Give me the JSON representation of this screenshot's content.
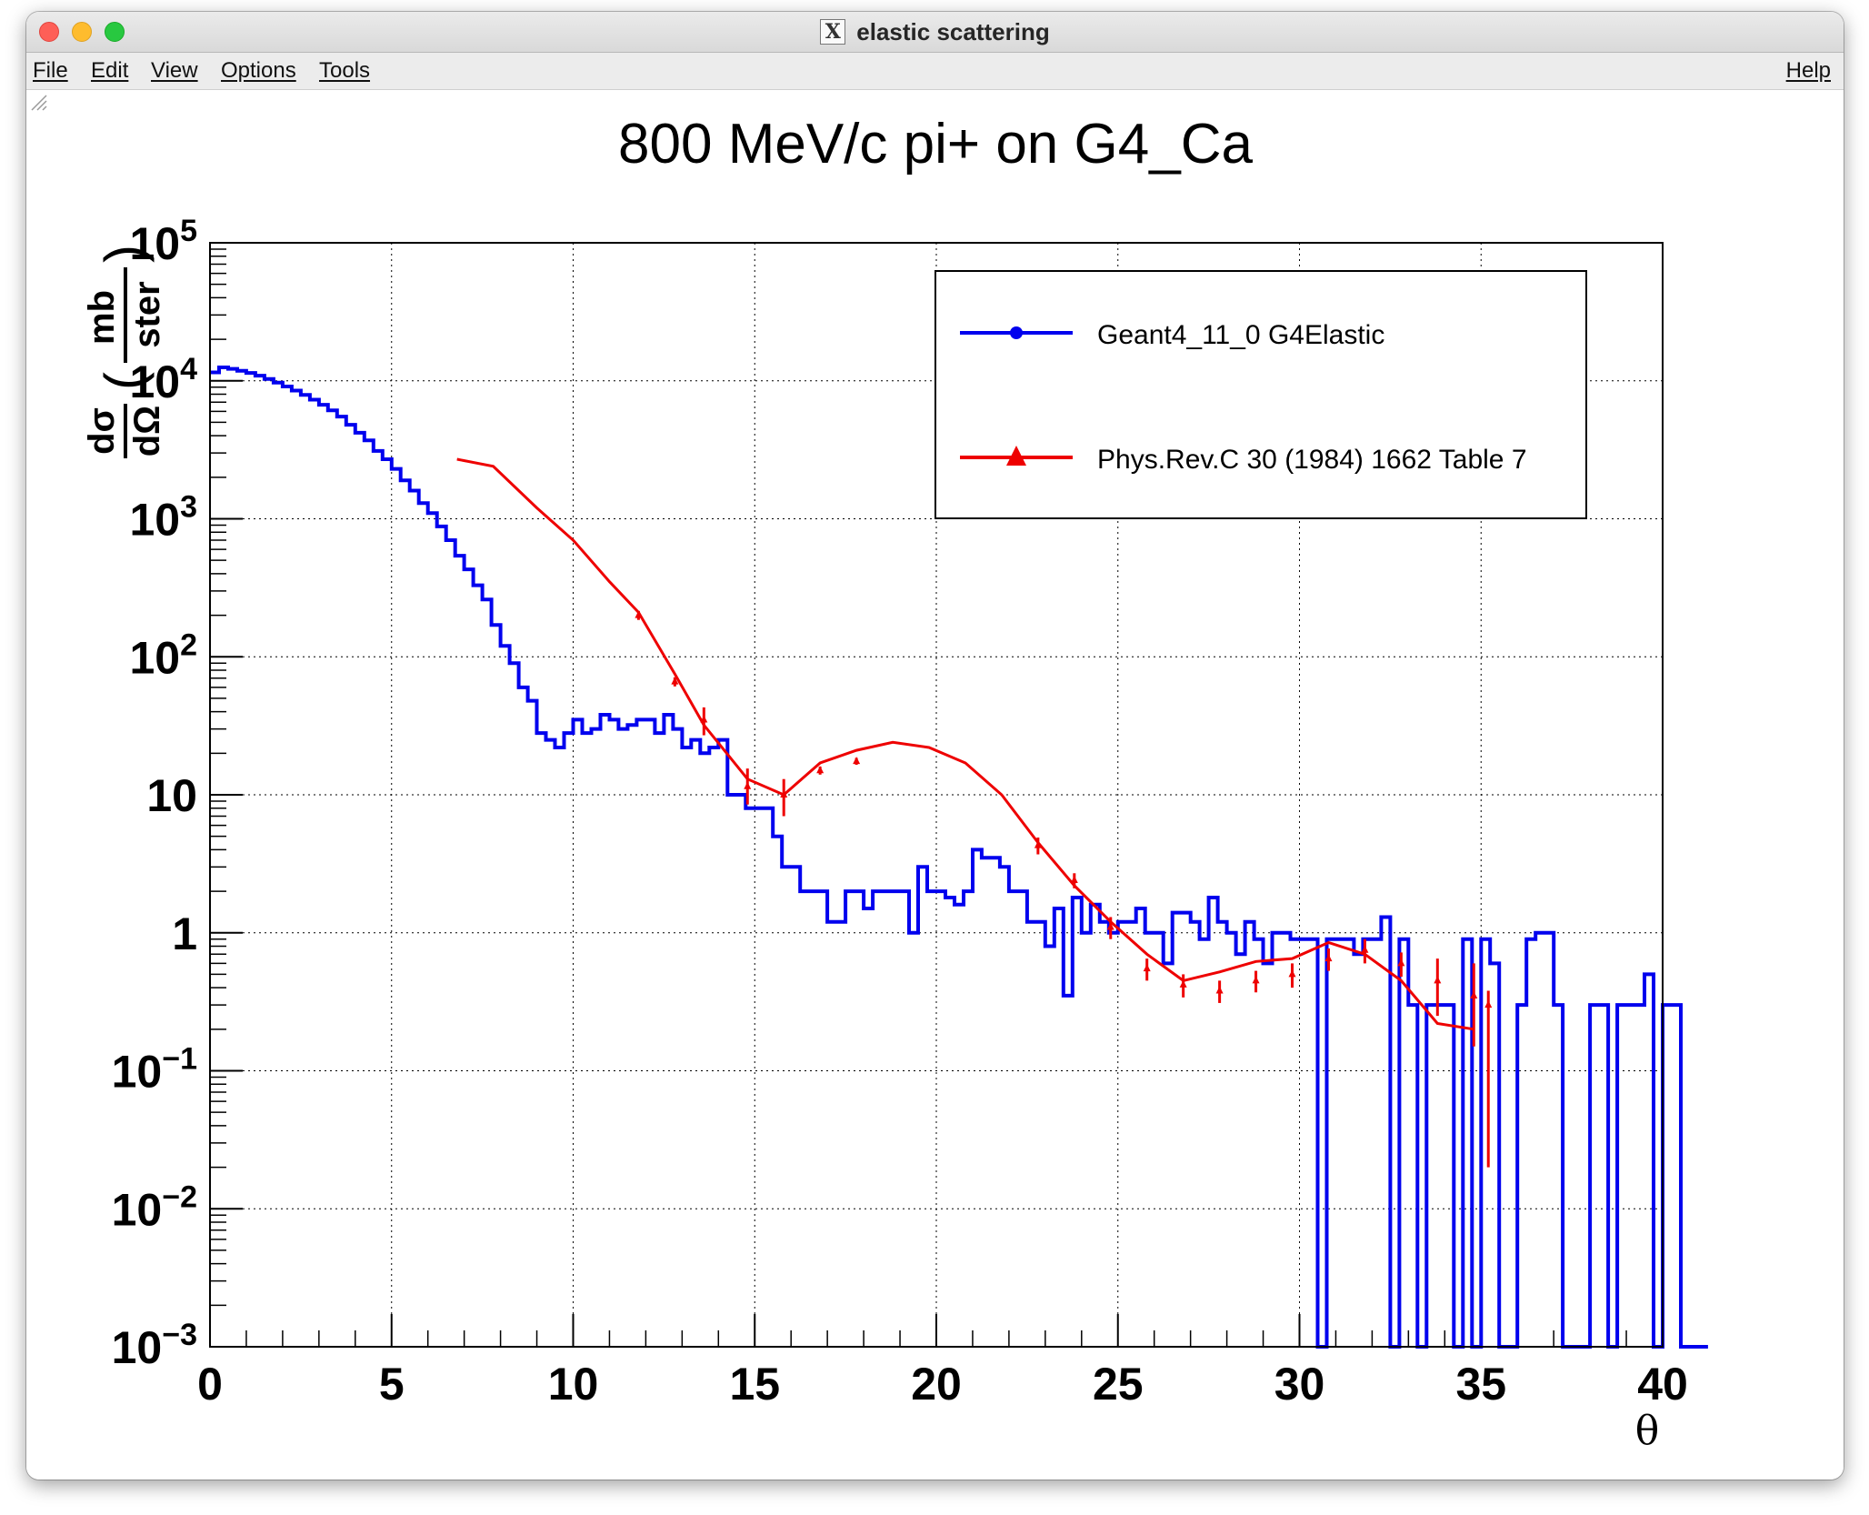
{
  "window": {
    "title": "elastic scattering"
  },
  "menu": {
    "file": "File",
    "edit": "Edit",
    "view": "View",
    "options": "Options",
    "tools": "Tools",
    "help": "Help"
  },
  "chart_data": {
    "type": "line",
    "title": "800 MeV/c pi+ on G4_Ca",
    "xlabel": "θ",
    "ylabel_num_left": "dσ",
    "ylabel_den_left": "dΩ",
    "ylabel_num_right": "mb",
    "ylabel_den_right": "ster",
    "xlim": [
      0,
      40
    ],
    "ylim": [
      0.001,
      100000
    ],
    "yscale": "log",
    "grid": true,
    "legend_position": "top-right",
    "x_ticks": [
      "0",
      "5",
      "10",
      "15",
      "20",
      "25",
      "30",
      "35",
      "40"
    ],
    "y_ticks": [
      {
        "value": 0.001,
        "base": "10",
        "exp": "−3"
      },
      {
        "value": 0.01,
        "base": "10",
        "exp": "−2"
      },
      {
        "value": 0.1,
        "base": "10",
        "exp": "−1"
      },
      {
        "value": 1,
        "base": "1",
        "exp": ""
      },
      {
        "value": 10,
        "base": "10",
        "exp": ""
      },
      {
        "value": 100,
        "base": "10",
        "exp": "2"
      },
      {
        "value": 1000,
        "base": "10",
        "exp": "3"
      },
      {
        "value": 10000,
        "base": "10",
        "exp": "4"
      },
      {
        "value": 100000,
        "base": "10",
        "exp": "5"
      }
    ],
    "series": [
      {
        "name": "Geant4_11_0 G4Elastic",
        "color": "#0000ee",
        "kind": "histogram",
        "bin_width": 0.25,
        "x_start": 0,
        "values": [
          11500,
          12500,
          12200,
          11800,
          11400,
          10900,
          10300,
          9700,
          9100,
          8500,
          7900,
          7300,
          6700,
          6100,
          5500,
          4800,
          4200,
          3700,
          3100,
          2700,
          2300,
          1900,
          1600,
          1300,
          1100,
          880,
          700,
          540,
          430,
          330,
          260,
          170,
          120,
          90,
          60,
          48,
          28,
          25,
          22,
          28,
          35,
          28,
          30,
          38,
          35,
          30,
          32,
          35,
          35,
          28,
          38,
          30,
          22,
          25,
          20,
          22,
          25,
          10,
          10,
          8,
          8,
          8,
          5,
          3,
          3,
          2,
          2,
          2,
          1.2,
          1.2,
          2,
          2,
          1.5,
          2,
          2,
          2,
          2,
          1,
          3,
          2,
          2,
          1.8,
          1.6,
          2,
          4,
          3.5,
          3.5,
          3,
          2,
          2,
          1.2,
          1.2,
          0.8,
          1.5,
          0.35,
          1.8,
          1,
          1.6,
          1.2,
          1,
          1.2,
          1.2,
          1.5,
          1,
          1,
          0.6,
          1.4,
          1.4,
          1.2,
          0.9,
          1.8,
          1.2,
          1,
          0.7,
          1.2,
          0.9,
          0.6,
          1,
          1,
          0.9,
          0.9,
          0.9,
          0.001,
          0.9,
          0.9,
          0.9,
          0.7,
          0.9,
          0.9,
          1.3,
          0.001,
          0.9,
          0.3,
          0.001,
          0.3,
          0.3,
          0.3,
          0.001,
          0.9,
          0.001,
          0.9,
          0.6,
          0.001,
          0.001,
          0.3,
          0.9,
          1,
          1,
          0.3,
          0.001,
          0.001,
          0.001,
          0.3,
          0.3,
          0.001,
          0.3,
          0.3,
          0.3,
          0.5,
          0.001,
          0.3,
          0.3,
          0.001,
          0.001,
          0.001
        ]
      },
      {
        "name": "Phys.Rev.C 30 (1984) 1662 Table 7",
        "color": "#ee0000",
        "kind": "curve-with-errors",
        "curve": [
          [
            6.8,
            2700
          ],
          [
            7.8,
            2400
          ],
          [
            9,
            1200
          ],
          [
            10,
            700
          ],
          [
            11,
            350
          ],
          [
            11.8,
            210
          ],
          [
            12.8,
            75
          ],
          [
            13.6,
            32
          ],
          [
            14.8,
            13
          ],
          [
            15.8,
            10
          ],
          [
            16.8,
            17
          ],
          [
            17.8,
            21
          ],
          [
            18.8,
            24
          ],
          [
            19.8,
            22
          ],
          [
            20.8,
            17
          ],
          [
            21.8,
            10
          ],
          [
            22.8,
            4.5
          ],
          [
            23.8,
            2.2
          ],
          [
            24.8,
            1.2
          ],
          [
            25.8,
            0.7
          ],
          [
            26.8,
            0.45
          ],
          [
            27.8,
            0.52
          ],
          [
            28.8,
            0.62
          ],
          [
            29.8,
            0.65
          ],
          [
            30.8,
            0.85
          ],
          [
            31.8,
            0.7
          ],
          [
            32.8,
            0.45
          ],
          [
            33.8,
            0.22
          ],
          [
            34.8,
            0.2
          ]
        ],
        "points": [
          [
            11.8,
            200,
            15,
            15
          ],
          [
            12.8,
            66,
            5,
            5
          ],
          [
            13.6,
            35,
            8,
            8
          ],
          [
            14.8,
            11.5,
            4,
            3
          ],
          [
            15.8,
            10,
            3,
            3
          ],
          [
            16.8,
            15,
            1,
            1
          ],
          [
            17.8,
            17.5,
            1,
            1
          ],
          [
            22.8,
            4.3,
            0.6,
            0.6
          ],
          [
            23.8,
            2.4,
            0.3,
            0.3
          ],
          [
            24.8,
            1.1,
            0.2,
            0.2
          ],
          [
            25.8,
            0.55,
            0.1,
            0.1
          ],
          [
            26.8,
            0.42,
            0.08,
            0.08
          ],
          [
            27.8,
            0.38,
            0.07,
            0.07
          ],
          [
            28.8,
            0.45,
            0.08,
            0.08
          ],
          [
            29.8,
            0.5,
            0.1,
            0.1
          ],
          [
            30.8,
            0.65,
            0.12,
            0.12
          ],
          [
            31.8,
            0.75,
            0.15,
            0.15
          ],
          [
            32.8,
            0.6,
            0.12,
            0.12
          ],
          [
            33.8,
            0.45,
            0.2,
            0.2
          ],
          [
            34.8,
            0.35,
            0.25,
            0.2
          ],
          [
            35.2,
            0.3,
            0.08,
            0.28
          ]
        ]
      }
    ]
  }
}
